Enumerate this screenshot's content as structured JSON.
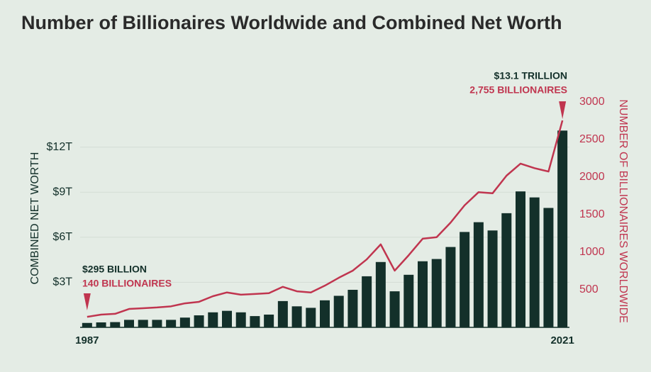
{
  "chart_data": {
    "type": "bar-line",
    "title": "Number of Billionaires Worldwide and Combined Net Worth",
    "ylabel": "COMBINED NET WORTH",
    "y2label": "NUMBER OF BILLIONAIRES WORLDWIDE",
    "categories": [
      "1987",
      null,
      null,
      null,
      null,
      null,
      null,
      null,
      null,
      null,
      null,
      null,
      null,
      null,
      null,
      null,
      null,
      null,
      null,
      null,
      null,
      null,
      null,
      null,
      null,
      null,
      null,
      null,
      null,
      null,
      null,
      null,
      null,
      null,
      "2021"
    ],
    "series": [
      {
        "type": "bar",
        "color": "#13302a",
        "axis": "y",
        "values": [
          0.295,
          0.33,
          0.35,
          0.5,
          0.5,
          0.5,
          0.5,
          0.65,
          0.8,
          1.0,
          1.1,
          1.0,
          0.75,
          0.85,
          1.75,
          1.4,
          1.3,
          1.8,
          2.1,
          2.5,
          3.4,
          4.35,
          2.4,
          3.5,
          4.4,
          4.55,
          5.35,
          6.35,
          7.0,
          6.45,
          7.6,
          9.05,
          8.65,
          7.95,
          13.1
        ]
      },
      {
        "type": "line",
        "color": "#c0354f",
        "axis": "y2",
        "values": [
          140,
          170,
          180,
          245,
          255,
          265,
          280,
          320,
          340,
          415,
          465,
          435,
          445,
          455,
          540,
          480,
          465,
          555,
          660,
          755,
          905,
          1105,
          755,
          960,
          1180,
          1200,
          1395,
          1625,
          1800,
          1785,
          2020,
          2180,
          2120,
          2075,
          2755
        ]
      }
    ],
    "ylim": [
      0,
      15
    ],
    "yticks": [
      {
        "value": 3,
        "label": "$3T"
      },
      {
        "value": 6,
        "label": "$6T"
      },
      {
        "value": 9,
        "label": "$9T"
      },
      {
        "value": 12,
        "label": "$12T"
      }
    ],
    "y2lim": [
      0,
      3000
    ],
    "y2ticks": [
      500,
      1000,
      1500,
      2000,
      2500,
      3000
    ],
    "grid": true,
    "annotations": [
      [
        "$295 BILLION",
        "140 BILLIONAIRES"
      ],
      [
        "$13.1 TRILLION",
        "2,755 BILLIONAIRES"
      ]
    ]
  }
}
